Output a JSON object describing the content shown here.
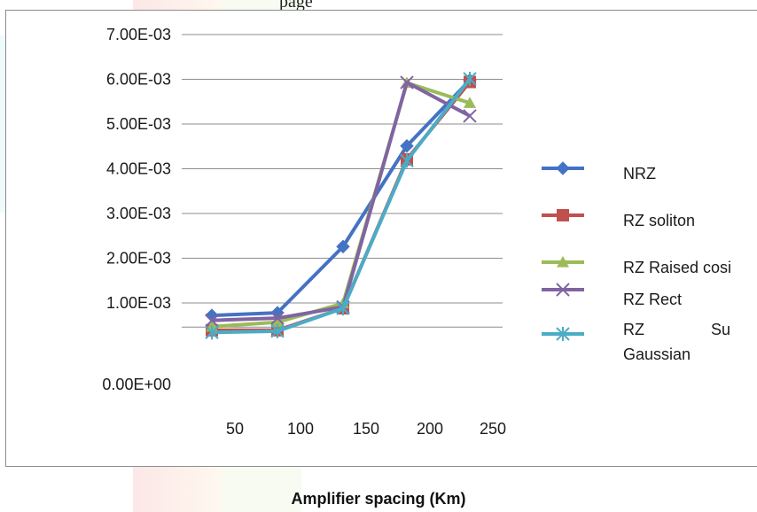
{
  "top_fragment": "page",
  "chart_data": {
    "type": "line",
    "x": [
      50,
      100,
      150,
      200,
      250
    ],
    "series": [
      {
        "name": "NRZ",
        "color": "#4472C4",
        "marker": "diamond",
        "values": [
          0.00072,
          0.00078,
          0.00226,
          0.00451,
          0.00598
        ]
      },
      {
        "name": "RZ soliton",
        "color": "#C0504D",
        "marker": "square",
        "values": [
          0.00039,
          0.00039,
          0.00088,
          0.00421,
          0.00594
        ]
      },
      {
        "name": "RZ Raised cosine",
        "color": "#9BBB59",
        "marker": "triangle",
        "values": [
          0.00047,
          0.00057,
          0.00099,
          0.00592,
          0.00547
        ]
      },
      {
        "name": "RZ Rect",
        "color": "#8064A2",
        "marker": "x",
        "values": [
          0.00061,
          0.00066,
          0.00091,
          0.00593,
          0.00518
        ]
      },
      {
        "name": "RZ Super Gaussian",
        "color": "#4BACC6",
        "marker": "star",
        "values": [
          0.00034,
          0.00037,
          0.00088,
          0.00418,
          0.00601
        ]
      }
    ],
    "legend_labels": [
      "NRZ",
      "RZ soliton",
      "RZ Raised cosi",
      "RZ Rect",
      "RZ               Su",
      "Gaussian"
    ],
    "y_ticks": [
      "0.00E+00",
      "1.00E-03",
      "2.00E-03",
      "3.00E-03",
      "4.00E-03",
      "5.00E-03",
      "6.00E-03",
      "7.00E-03"
    ],
    "x_ticks": [
      "50",
      "100",
      "150",
      "200",
      "250"
    ],
    "ylim": [
      0,
      0.007
    ],
    "xlabel": "Amplifier spacing (Km)",
    "ylabel": "",
    "title": "",
    "grid": "horizontal",
    "legend_position": "right"
  }
}
